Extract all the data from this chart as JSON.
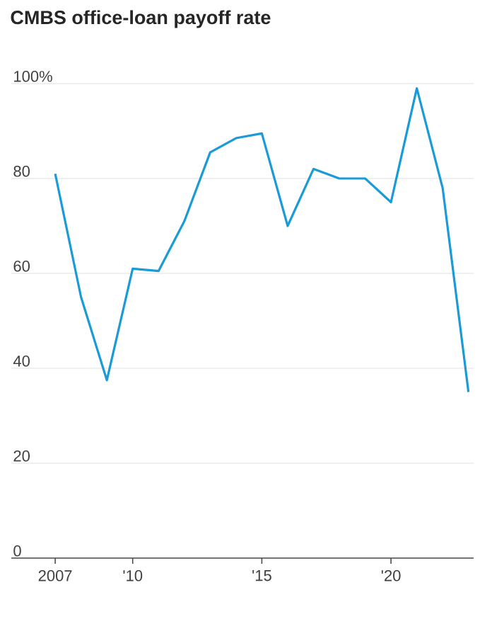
{
  "chart_data": {
    "type": "line",
    "title": "CMBS office-loan payoff rate",
    "x": [
      2007,
      2008,
      2009,
      2010,
      2011,
      2012,
      2013,
      2014,
      2015,
      2016,
      2017,
      2018,
      2019,
      2020,
      2021,
      2022,
      2023
    ],
    "series": [
      {
        "color": "#1a9bd7",
        "values": [
          81,
          55,
          37.5,
          61,
          60.5,
          71,
          85.5,
          88.5,
          89.5,
          70,
          82,
          80,
          80,
          75,
          99,
          78,
          35
        ]
      }
    ],
    "xlim": [
      2005.3,
      2023.2
    ],
    "ylim": [
      0,
      100
    ],
    "xticks": [
      2007,
      {
        "value": 2010,
        "label": "'10"
      },
      {
        "value": 2015,
        "label": "'15"
      },
      {
        "value": 2020,
        "label": "'20"
      }
    ],
    "yticks": [
      0,
      20,
      40,
      60,
      80,
      {
        "value": 100,
        "label": "100%"
      }
    ],
    "grid": "y",
    "marker": "none",
    "line_style": "solid"
  }
}
